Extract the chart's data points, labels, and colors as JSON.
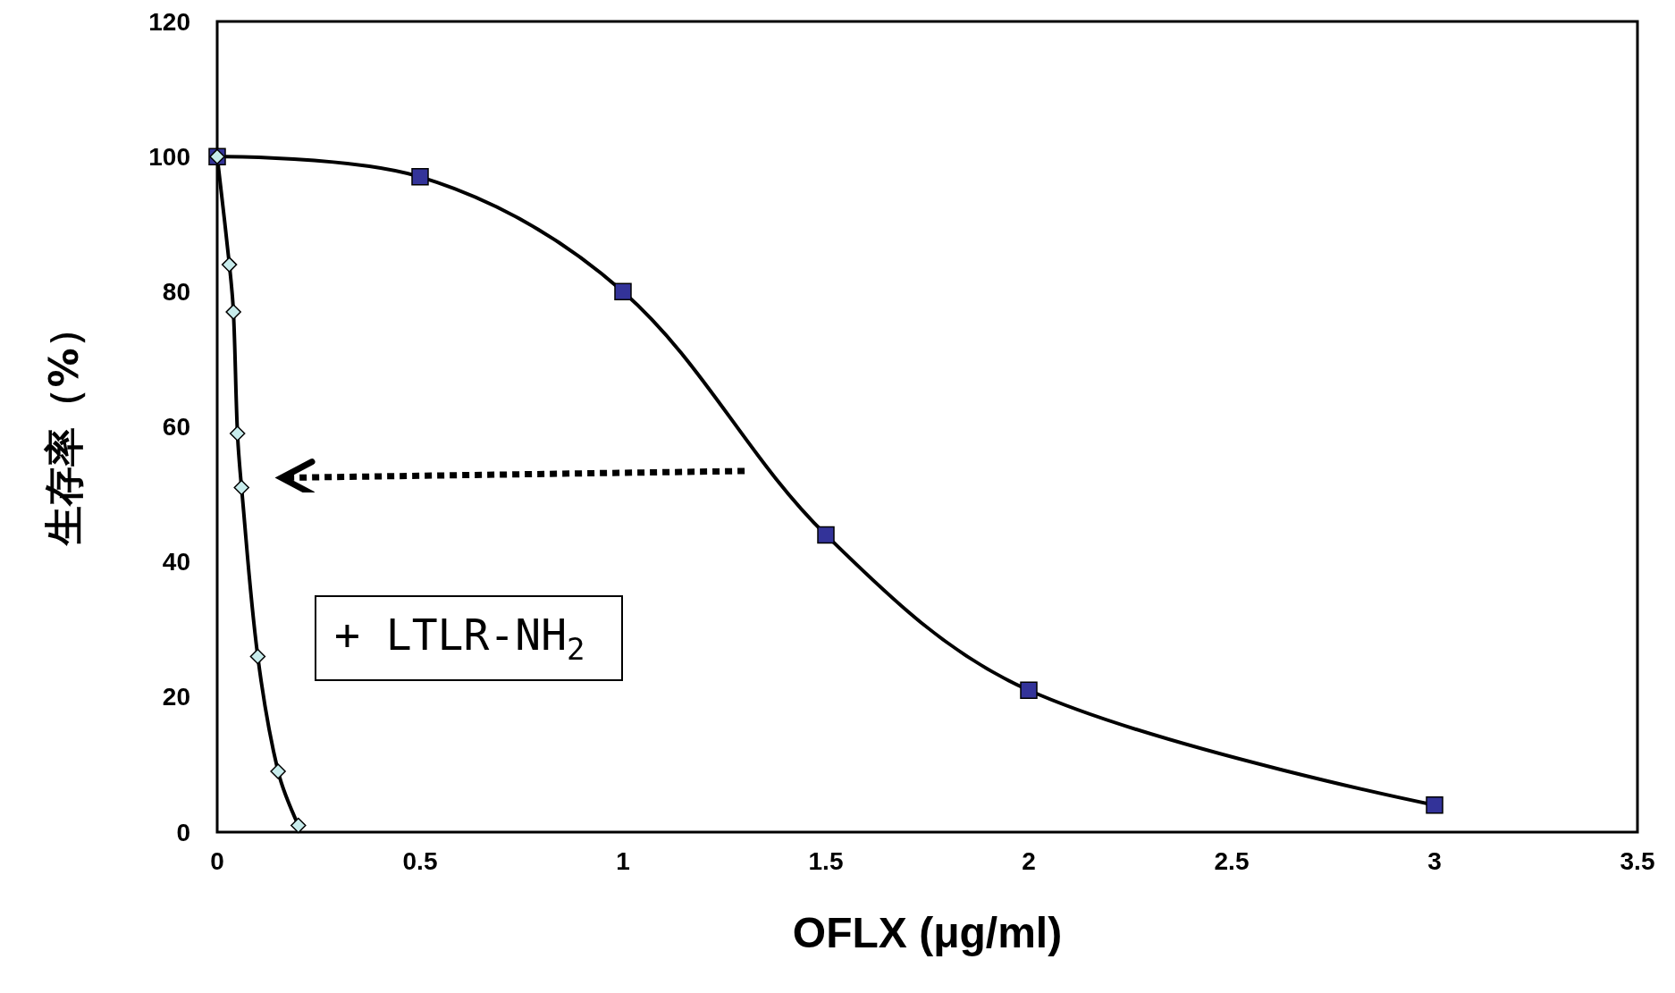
{
  "chart_data": {
    "type": "line",
    "xlabel": "OFLX (μg/ml)",
    "ylabel": "生存率（%）",
    "xlim": [
      0,
      3.5
    ],
    "xticks": [
      0,
      0.5,
      1,
      1.5,
      2,
      2.5,
      3,
      3.5
    ],
    "ylim": [
      0,
      120
    ],
    "yticks": [
      0,
      20,
      40,
      60,
      80,
      100,
      120
    ],
    "grid": false,
    "line_style": "solid",
    "annotations": [
      "+ LTLR-NH$_{2}$"
    ],
    "series": [
      {
        "color": "#333399",
        "marker": "square",
        "x": [
          0,
          0.5,
          1,
          1.5,
          2,
          3
        ],
        "values": [
          100,
          97,
          80,
          44,
          21,
          4
        ]
      },
      {
        "color": "#c8ecec",
        "marker": "diamond",
        "x": [
          0,
          0.03,
          0.04,
          0.05,
          0.06,
          0.1,
          0.15,
          0.2
        ],
        "values": [
          100,
          84,
          77,
          59,
          51,
          26,
          9,
          1
        ]
      }
    ]
  }
}
